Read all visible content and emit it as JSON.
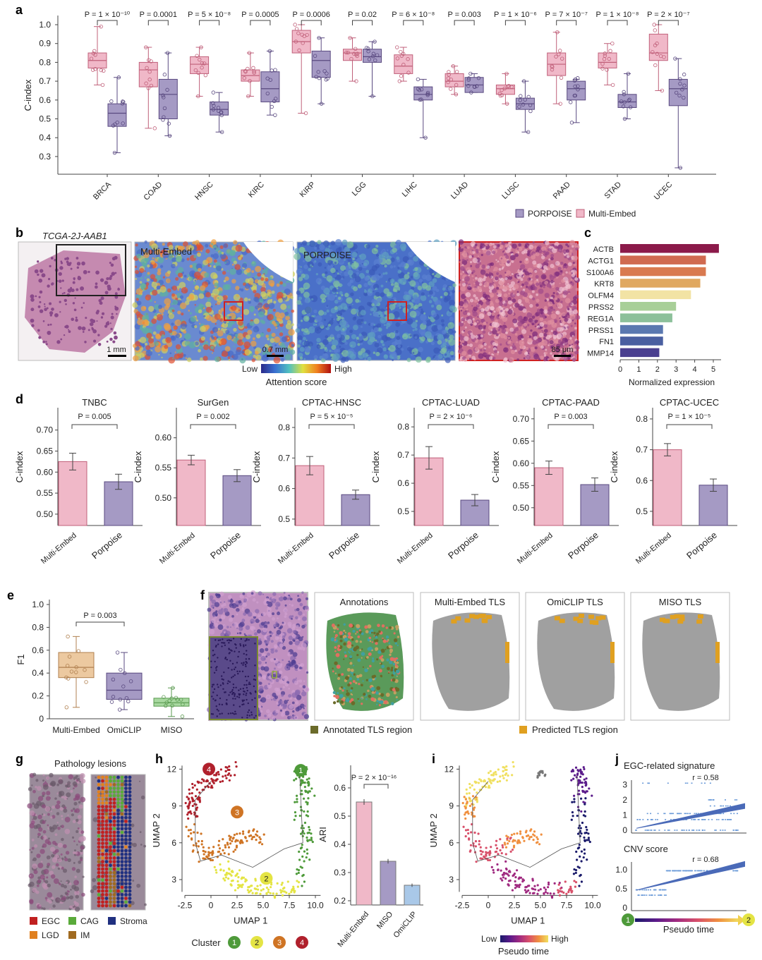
{
  "panel_labels": {
    "a": "a",
    "b": "b",
    "c": "c",
    "d": "d",
    "e": "e",
    "f": "f",
    "g": "g",
    "h": "h",
    "i": "i",
    "j": "j"
  },
  "colors": {
    "multi_embed": "#f0b8c8",
    "multi_embed_stroke": "#c0607a",
    "porpoise": "#a59ac4",
    "porpoise_stroke": "#5a4a80",
    "omiclip": "#a9c8e8",
    "miso": "#a8d8a0"
  },
  "chart_data": [
    {
      "panel": "a",
      "type": "box",
      "ylabel": "C-index",
      "ylim": [
        0.22,
        1.05
      ],
      "yticks": [
        0.3,
        0.4,
        0.5,
        0.6,
        0.7,
        0.8,
        0.9,
        1.0
      ],
      "ytick_labels": [
        "0.3",
        "0.4",
        "0.5",
        "0.6",
        "0.7",
        "0.8",
        "0.9",
        "1.0"
      ],
      "categories": [
        "BRCA",
        "COAD",
        "HNSC",
        "KIRC",
        "KIRP",
        "LGG",
        "LIHC",
        "LUAD",
        "LUSC",
        "PAAD",
        "STAD",
        "UCEC"
      ],
      "p_values": [
        "P = 1 × 10⁻¹⁰",
        "P = 0.0001",
        "P = 5 × 10⁻⁸",
        "P = 0.0005",
        "P = 0.0006",
        "P = 0.02",
        "P = 6 × 10⁻⁸",
        "P = 0.003",
        "P = 1 × 10⁻⁶",
        "P = 7 × 10⁻⁷",
        "P = 1 × 10⁻⁸",
        "P = 2 × 10⁻⁷"
      ],
      "legend": [
        "PORPOISE",
        "Multi-Embed"
      ],
      "series": [
        {
          "name": "Multi-Embed",
          "stats": [
            [
              0.68,
              0.77,
              0.81,
              0.85,
              0.99
            ],
            [
              0.45,
              0.67,
              0.76,
              0.8,
              0.88
            ],
            [
              0.62,
              0.74,
              0.79,
              0.83,
              0.88
            ],
            [
              0.62,
              0.7,
              0.73,
              0.76,
              0.85
            ],
            [
              0.53,
              0.85,
              0.91,
              0.97,
              1.0
            ],
            [
              0.7,
              0.81,
              0.85,
              0.87,
              0.93
            ],
            [
              0.7,
              0.74,
              0.78,
              0.84,
              0.88
            ],
            [
              0.63,
              0.67,
              0.7,
              0.74,
              0.78
            ],
            [
              0.58,
              0.63,
              0.66,
              0.68,
              0.74
            ],
            [
              0.58,
              0.73,
              0.79,
              0.85,
              0.96
            ],
            [
              0.68,
              0.77,
              0.8,
              0.85,
              0.9
            ],
            [
              0.65,
              0.81,
              0.85,
              0.95,
              1.0
            ]
          ]
        },
        {
          "name": "PORPOISE",
          "stats": [
            [
              0.32,
              0.46,
              0.53,
              0.58,
              0.72
            ],
            [
              0.41,
              0.5,
              0.63,
              0.71,
              0.85
            ],
            [
              0.43,
              0.52,
              0.55,
              0.59,
              0.64
            ],
            [
              0.52,
              0.59,
              0.66,
              0.75,
              0.86
            ],
            [
              0.58,
              0.72,
              0.81,
              0.86,
              0.93
            ],
            [
              0.62,
              0.8,
              0.83,
              0.87,
              0.91
            ],
            [
              0.4,
              0.6,
              0.63,
              0.67,
              0.71
            ],
            [
              0.64,
              0.64,
              0.68,
              0.72,
              0.74
            ],
            [
              0.43,
              0.55,
              0.58,
              0.61,
              0.7
            ],
            [
              0.48,
              0.6,
              0.66,
              0.7,
              0.71
            ],
            [
              0.5,
              0.56,
              0.59,
              0.63,
              0.74
            ],
            [
              0.24,
              0.57,
              0.66,
              0.71,
              0.82
            ]
          ]
        }
      ]
    },
    {
      "panel": "c",
      "type": "bar",
      "orientation": "horizontal",
      "xlabel": "Normalized expression",
      "xlim": [
        0,
        5.5
      ],
      "xticks": [
        "0",
        "1",
        "2",
        "3",
        "4",
        "5"
      ],
      "categories": [
        "ACTB",
        "ACTG1",
        "S100A6",
        "KRT8",
        "OLFM4",
        "PRSS2",
        "REG1A",
        "PRSS1",
        "FN1",
        "MMP14"
      ],
      "values": [
        5.3,
        4.6,
        4.6,
        4.3,
        3.8,
        3.0,
        2.8,
        2.3,
        2.3,
        2.1
      ],
      "bar_colors": [
        "#8b1a4a",
        "#d06a50",
        "#d97a50",
        "#e0a860",
        "#f2e3a4",
        "#a8cf98",
        "#8cc09a",
        "#5a78b0",
        "#4a5fa0",
        "#4a3f8f"
      ]
    },
    {
      "panel": "d",
      "type": "bar",
      "ylabel": "C-index",
      "categories": [
        "Multi-Embed",
        "Porpoise"
      ],
      "panels": [
        {
          "title": "TNBC",
          "p": "P = 0.005",
          "ylim": [
            0.473,
            0.733
          ],
          "yticks": [
            0.5,
            0.55,
            0.6,
            0.65,
            0.7
          ],
          "ytick_labels": [
            "0.50",
            "0.55",
            "0.60",
            "0.65",
            "0.70"
          ],
          "values": [
            0.625,
            0.577
          ],
          "errors": [
            0.02,
            0.018
          ]
        },
        {
          "title": "SurGen",
          "p": "P = 0.002",
          "ylim": [
            0.454,
            0.636
          ],
          "yticks": [
            0.5,
            0.55,
            0.6
          ],
          "ytick_labels": [
            "0.50",
            "0.55",
            "0.60"
          ],
          "values": [
            0.563,
            0.537
          ],
          "errors": [
            0.008,
            0.01
          ]
        },
        {
          "title": "CPTAC-HNSC",
          "p": "P = 5 × 10⁻⁵",
          "ylim": [
            0.479,
            0.837
          ],
          "yticks": [
            0.5,
            0.6,
            0.7,
            0.8
          ],
          "ytick_labels": [
            "0.5",
            "0.6",
            "0.7",
            "0.8"
          ],
          "values": [
            0.675,
            0.58
          ],
          "errors": [
            0.03,
            0.015
          ]
        },
        {
          "title": "CPTAC-LUAD",
          "p": "P = 2 × 10⁻⁶",
          "ylim": [
            0.45,
            0.838
          ],
          "yticks": [
            0.5,
            0.6,
            0.7,
            0.8
          ],
          "ytick_labels": [
            "0.5",
            "0.6",
            "0.7",
            "0.8"
          ],
          "values": [
            0.69,
            0.54
          ],
          "errors": [
            0.04,
            0.02
          ]
        },
        {
          "title": "CPTAC-PAAD",
          "p": "P = 0.003",
          "ylim": [
            0.46,
            0.706
          ],
          "yticks": [
            0.5,
            0.55,
            0.6,
            0.65,
            0.7
          ],
          "ytick_labels": [
            "0.50",
            "0.55",
            "0.60",
            "0.65",
            "0.70"
          ],
          "values": [
            0.59,
            0.552
          ],
          "errors": [
            0.015,
            0.015
          ]
        },
        {
          "title": "CPTAC-UCEC",
          "p": "P = 1 × 10⁻⁵",
          "ylim": [
            0.454,
            0.809
          ],
          "yticks": [
            0.5,
            0.6,
            0.7,
            0.8
          ],
          "ytick_labels": [
            "0.5",
            "0.6",
            "0.7",
            "0.8"
          ],
          "values": [
            0.7,
            0.585
          ],
          "errors": [
            0.02,
            0.02
          ]
        }
      ]
    },
    {
      "panel": "e",
      "type": "box",
      "ylabel": "F1",
      "ylim": [
        0,
        1.0
      ],
      "yticks": [
        0,
        0.2,
        0.4,
        0.6,
        0.8,
        1.0
      ],
      "ytick_labels": [
        "0",
        "0.2",
        "0.4",
        "0.6",
        "0.8",
        "1.0"
      ],
      "categories": [
        "Multi-Embed",
        "OmiCLIP",
        "MISO"
      ],
      "p": "P = 0.003",
      "stats": [
        [
          0.1,
          0.36,
          0.45,
          0.58,
          0.72
        ],
        [
          0.08,
          0.17,
          0.25,
          0.4,
          0.58
        ],
        [
          0.02,
          0.11,
          0.14,
          0.18,
          0.27
        ]
      ],
      "fills": [
        "#ecc9a0",
        "#a59ac4",
        "#a8d8a0"
      ],
      "strokes": [
        "#b08050",
        "#5a4a80",
        "#5a9a50"
      ]
    },
    {
      "panel": "h",
      "type": "scatter",
      "xlabel": "UMAP 1",
      "ylabel": "UMAP 2",
      "xticks": [
        -2.5,
        0,
        2.5,
        5,
        7.5,
        10
      ],
      "xtick_labels": [
        "-2.5",
        "0",
        "2.5",
        "5.0",
        "7.5",
        "10.0"
      ],
      "yticks": [
        3,
        6,
        9,
        12
      ],
      "ytick_labels": [
        "3",
        "6",
        "9",
        "12"
      ],
      "legend_title": "Cluster",
      "clusters": [
        "1",
        "2",
        "3",
        "4"
      ],
      "cluster_colors": [
        "#4e9a3a",
        "#e4e444",
        "#cf7424",
        "#b0202c"
      ],
      "cluster_paths": [
        [
          [
            8.5,
            3
          ],
          [
            9.2,
            6
          ],
          [
            8.5,
            8.5
          ],
          [
            9.3,
            10.5
          ],
          [
            8.5,
            11.8
          ]
        ],
        [
          [
            0.8,
            4
          ],
          [
            3,
            2.6
          ],
          [
            6,
            2.1
          ],
          [
            8.5,
            2.6
          ]
        ],
        [
          [
            -2,
            7.2
          ],
          [
            -1,
            5
          ],
          [
            1.2,
            5.6
          ],
          [
            3.2,
            6.6
          ],
          [
            5.2,
            6.4
          ]
        ],
        [
          [
            -2,
            7.6
          ],
          [
            -1.6,
            10
          ],
          [
            0,
            11.2
          ],
          [
            2,
            12
          ]
        ]
      ],
      "cluster_label_positions": [
        [
          8.6,
          11.9
        ],
        [
          5.3,
          3.1
        ],
        [
          2.5,
          8.5
        ],
        [
          -0.2,
          12.0
        ]
      ]
    },
    {
      "panel": "h-ari",
      "type": "bar",
      "ylabel": "ARI",
      "ylim": [
        0.2,
        0.62
      ],
      "yticks": [
        0.2,
        0.3,
        0.4,
        0.5,
        0.6
      ],
      "ytick_labels": [
        "0.2",
        "0.3",
        "0.4",
        "0.5",
        "0.6"
      ],
      "categories": [
        "Multi-Embed",
        "MISO",
        "OmiCLIP"
      ],
      "values": [
        0.55,
        0.34,
        0.255
      ],
      "errors": [
        0.01,
        0.008,
        0.006
      ],
      "bar_colors": [
        "#f0b8c8",
        "#a59ac4",
        "#a9c8e8"
      ],
      "p": "P = 2 × 10⁻¹⁶"
    },
    {
      "panel": "i",
      "type": "scatter",
      "xlabel": "UMAP 1",
      "ylabel": "UMAP 2",
      "colorbar_title": "Pseudo time",
      "colorbar_low": "Low",
      "colorbar_high": "High"
    },
    {
      "panel": "j",
      "type": "scatter",
      "title": "EGC-related signature",
      "r": "r = 0.58",
      "yticks": [
        0,
        1,
        2,
        3
      ],
      "ytick_labels": [
        "0",
        "1",
        "2",
        "3"
      ],
      "ylim": [
        0,
        3.3
      ],
      "fit": [
        0.15,
        1.6
      ]
    },
    {
      "panel": "j2",
      "type": "scatter",
      "title": "CNV score",
      "r": "r = 0.68",
      "yticks": [
        0,
        0.5,
        1.0
      ],
      "ytick_labels": [
        "0",
        "0.5",
        "1.0"
      ],
      "ylim": [
        0,
        1.2
      ],
      "fit": [
        0.47,
        1.15
      ],
      "xlabel": "Pseudo time",
      "start": "1",
      "end": "2"
    }
  ],
  "panel_b": {
    "sample": "TCGA-2J-AAB1",
    "heatmap1": "Multi-Embed",
    "heatmap2": "PORPOISE",
    "scale1": "1 mm",
    "scale2": "0.7 mm",
    "scale3": "85 μm",
    "cbar_low": "Low",
    "cbar_high": "High",
    "cbar_title": "Attention score"
  },
  "panel_f": {
    "titles": [
      "Annotations",
      "Multi-Embed TLS",
      "OmiCLIP TLS",
      "MISO TLS"
    ],
    "legend_annotated": "Annotated TLS region",
    "legend_predicted": "Predicted TLS region",
    "annotated_color": "#6b6b2a",
    "predicted_color": "#e0a020"
  },
  "panel_g": {
    "title": "Pathology lesions",
    "legend": [
      {
        "label": "EGC",
        "color": "#c02020"
      },
      {
        "label": "CAG",
        "color": "#5aaa3a"
      },
      {
        "label": "Stroma",
        "color": "#203080"
      },
      {
        "label": "LGD",
        "color": "#e08020"
      },
      {
        "label": "IM",
        "color": "#a06a20"
      }
    ]
  }
}
